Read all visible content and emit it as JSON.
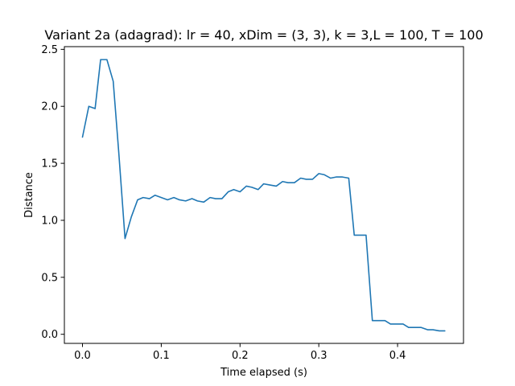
{
  "chart_data": {
    "type": "line",
    "title": "Variant 2a (adagrad): lr = 40, xDim = (3, 3), k = 3,L = 100, T = 100",
    "xlabel": "Time elapsed (s)",
    "ylabel": "Distance",
    "xlim": [
      -0.023,
      0.4837
    ],
    "ylim": [
      -0.0797,
      2.5237
    ],
    "xticks": [
      0.0,
      0.1,
      0.2,
      0.3,
      0.4
    ],
    "xtick_labels": [
      "0.0",
      "0.1",
      "0.2",
      "0.3",
      "0.4"
    ],
    "yticks": [
      0.0,
      0.5,
      1.0,
      1.5,
      2.0,
      2.5
    ],
    "ytick_labels": [
      "0.0",
      "0.5",
      "1.0",
      "1.5",
      "2.0",
      "2.5"
    ],
    "grid": false,
    "series": [
      {
        "color": "#1f77b4",
        "x": [
          0.0,
          0.008,
          0.016,
          0.023,
          0.031,
          0.039,
          0.046,
          0.054,
          0.062,
          0.07,
          0.077,
          0.085,
          0.092,
          0.1,
          0.108,
          0.116,
          0.123,
          0.131,
          0.139,
          0.146,
          0.154,
          0.162,
          0.169,
          0.177,
          0.185,
          0.192,
          0.2,
          0.208,
          0.215,
          0.223,
          0.23,
          0.238,
          0.246,
          0.254,
          0.261,
          0.269,
          0.277,
          0.284,
          0.292,
          0.3,
          0.307,
          0.315,
          0.322,
          0.33,
          0.338,
          0.345,
          0.353,
          0.36,
          0.368,
          0.376,
          0.384,
          0.391,
          0.399,
          0.407,
          0.414,
          0.422,
          0.43,
          0.438,
          0.445,
          0.453,
          0.46
        ],
        "y": [
          1.73,
          2.0,
          1.98,
          2.41,
          2.41,
          2.22,
          1.6,
          0.84,
          1.03,
          1.18,
          1.2,
          1.19,
          1.22,
          1.2,
          1.18,
          1.2,
          1.18,
          1.17,
          1.19,
          1.17,
          1.16,
          1.2,
          1.19,
          1.19,
          1.25,
          1.27,
          1.25,
          1.3,
          1.29,
          1.27,
          1.32,
          1.31,
          1.3,
          1.34,
          1.33,
          1.33,
          1.37,
          1.36,
          1.36,
          1.41,
          1.4,
          1.37,
          1.38,
          1.38,
          1.37,
          0.87,
          0.87,
          0.87,
          0.12,
          0.12,
          0.12,
          0.09,
          0.09,
          0.09,
          0.06,
          0.06,
          0.06,
          0.04,
          0.04,
          0.03,
          0.03
        ]
      }
    ]
  }
}
